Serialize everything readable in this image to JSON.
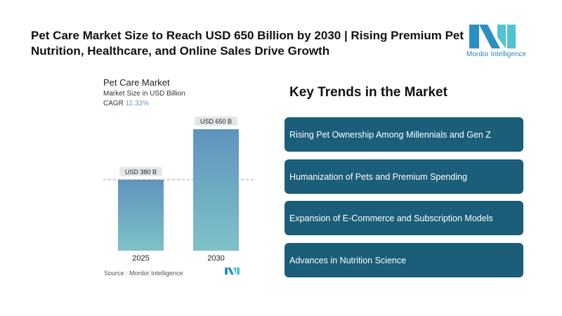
{
  "header": {
    "title": "Pet Care Market Size to Reach USD 650 Billion by 2030 | Rising Premium Pet Nutrition, Healthcare, and Online Sales Drive Growth",
    "logo_text": "Mordor Intelligence"
  },
  "chart_data": {
    "type": "bar",
    "title": "Pet Care Market",
    "subtitle": "Market Size in USD Billion",
    "cagr_label": "CAGR",
    "cagr_value": "11.33%",
    "categories": [
      "2025",
      "2030"
    ],
    "values": [
      380,
      650
    ],
    "data_labels": [
      "USD 380 B",
      "USD 650 B"
    ],
    "ylim": [
      0,
      650
    ],
    "source": "Source :  Mordor Intelligence"
  },
  "trends": {
    "heading": "Key Trends in the Market",
    "items": [
      "Rising Pet Ownership Among Millennials and Gen Z",
      "Humanization of Pets and Premium Spending",
      "Expansion of E-Commerce and Subscription Models",
      "Advances in Nutrition Science"
    ]
  }
}
